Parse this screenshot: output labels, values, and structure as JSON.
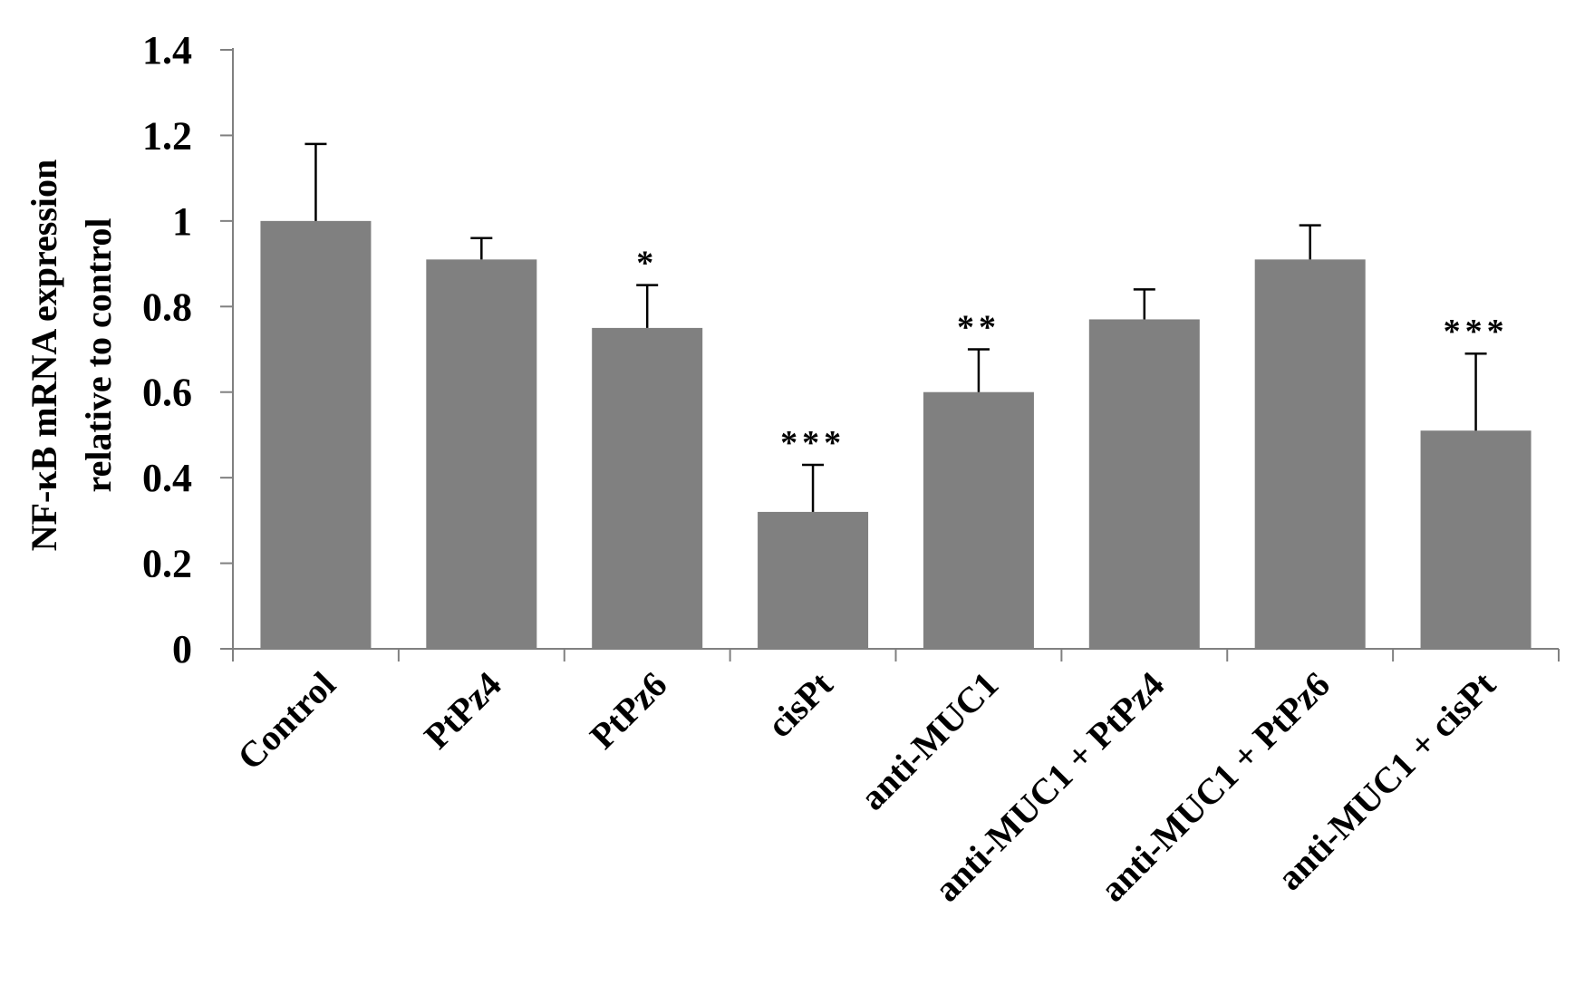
{
  "chart_data": {
    "type": "bar",
    "ylabel_line1": "NF-κB  mRNA  expression",
    "ylabel_line2": "relative to control",
    "xlabel": "",
    "ylim": [
      0,
      1.4
    ],
    "yticks": [
      "0",
      "0.2",
      "0.4",
      "0.6",
      "0.8",
      "1",
      "1.2",
      "1.4"
    ],
    "grid": false,
    "legend": "none",
    "bar_color": "#808080",
    "categories": [
      "Control",
      "PtPz4",
      "PtPz6",
      "cisPt",
      "anti-MUC1",
      "anti-MUC1 + PtPz4",
      "anti-MUC1 + PtPz6",
      "anti-MUC1 + cisPt"
    ],
    "values": [
      1.0,
      0.91,
      0.75,
      0.32,
      0.6,
      0.77,
      0.91,
      0.51
    ],
    "errors": [
      0.18,
      0.05,
      0.1,
      0.11,
      0.1,
      0.07,
      0.08,
      0.18
    ],
    "significance": [
      "",
      "",
      "*",
      "***",
      "**",
      "",
      "",
      "***"
    ]
  }
}
